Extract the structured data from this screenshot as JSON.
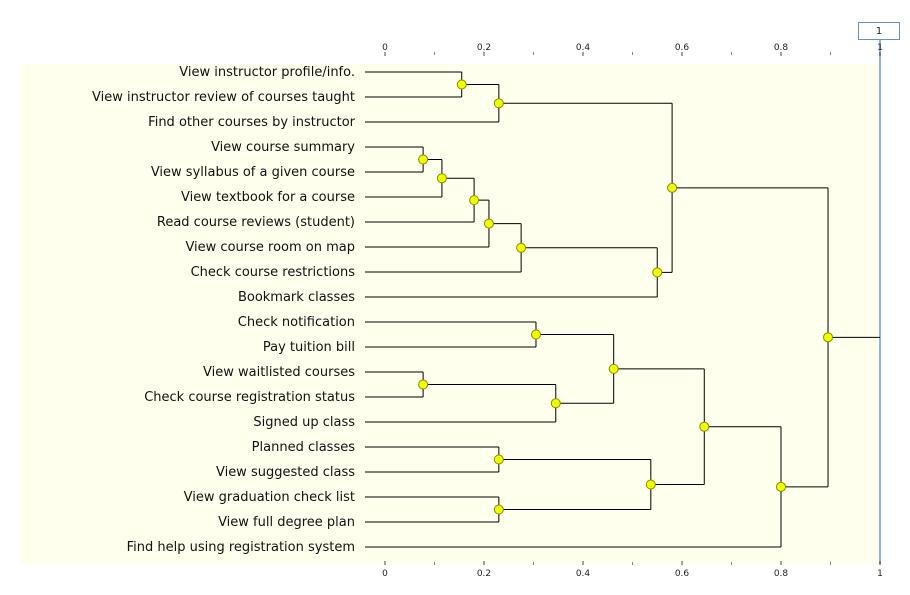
{
  "cutoff_value": "1",
  "colors": {
    "plot_background": "#ffffee",
    "line": "#000000",
    "node_fill": "#eeff00",
    "node_stroke": "#8a8a00",
    "cutoff_line": "#90b4d8"
  },
  "axis": {
    "min": 0,
    "max": 1,
    "ticks": [
      {
        "value": 0,
        "label": "0"
      },
      {
        "value": 0.2,
        "label": "0.2"
      },
      {
        "value": 0.4,
        "label": "0.4"
      },
      {
        "value": 0.6,
        "label": "0.6"
      },
      {
        "value": 0.8,
        "label": "0.8"
      },
      {
        "value": 1,
        "label": "1"
      }
    ]
  },
  "leaves": [
    "View instructor profile/info.",
    "View instructor review of courses taught",
    "Find other courses by instructor",
    "View course summary",
    "View syllabus of a given course",
    "View textbook for a course",
    "Read course reviews (student)",
    "View course room on map",
    "Check course restrictions",
    "Bookmark classes",
    "Check notification",
    "Pay tuition bill",
    "View waitlisted courses",
    "Check course registration status",
    "Signed up class",
    "Planned classes",
    "View suggested class",
    "View graduation check list",
    "View full degree plan",
    "Find help using registration system"
  ],
  "merges": [
    {
      "id": "n1",
      "children": [
        "L0",
        "L1"
      ],
      "height": 0.155
    },
    {
      "id": "n2",
      "children": [
        "n1",
        "L2"
      ],
      "height": 0.23
    },
    {
      "id": "n3",
      "children": [
        "L3",
        "L4"
      ],
      "height": 0.077
    },
    {
      "id": "n4",
      "children": [
        "n3",
        "L5"
      ],
      "height": 0.115
    },
    {
      "id": "n5",
      "children": [
        "n4",
        "L6"
      ],
      "height": 0.18
    },
    {
      "id": "n6",
      "children": [
        "n5",
        "L7"
      ],
      "height": 0.21
    },
    {
      "id": "n7",
      "children": [
        "n6",
        "L8"
      ],
      "height": 0.275
    },
    {
      "id": "n8",
      "children": [
        "n7",
        "L9"
      ],
      "height": 0.55
    },
    {
      "id": "n9",
      "children": [
        "n2",
        "n8"
      ],
      "height": 0.58
    },
    {
      "id": "n10",
      "children": [
        "L10",
        "L11"
      ],
      "height": 0.305
    },
    {
      "id": "n11",
      "children": [
        "L12",
        "L13"
      ],
      "height": 0.077
    },
    {
      "id": "n12",
      "children": [
        "n11",
        "L14"
      ],
      "height": 0.345
    },
    {
      "id": "n13",
      "children": [
        "n10",
        "n12"
      ],
      "height": 0.462
    },
    {
      "id": "n14",
      "children": [
        "L15",
        "L16"
      ],
      "height": 0.23
    },
    {
      "id": "n15",
      "children": [
        "L17",
        "L18"
      ],
      "height": 0.23
    },
    {
      "id": "n16",
      "children": [
        "n14",
        "n15"
      ],
      "height": 0.537
    },
    {
      "id": "n17",
      "children": [
        "n13",
        "n16"
      ],
      "height": 0.645
    },
    {
      "id": "n18",
      "children": [
        "n17",
        "L19"
      ],
      "height": 0.8
    },
    {
      "id": "n19",
      "children": [
        "n9",
        "n18"
      ],
      "height": 0.895
    }
  ]
}
